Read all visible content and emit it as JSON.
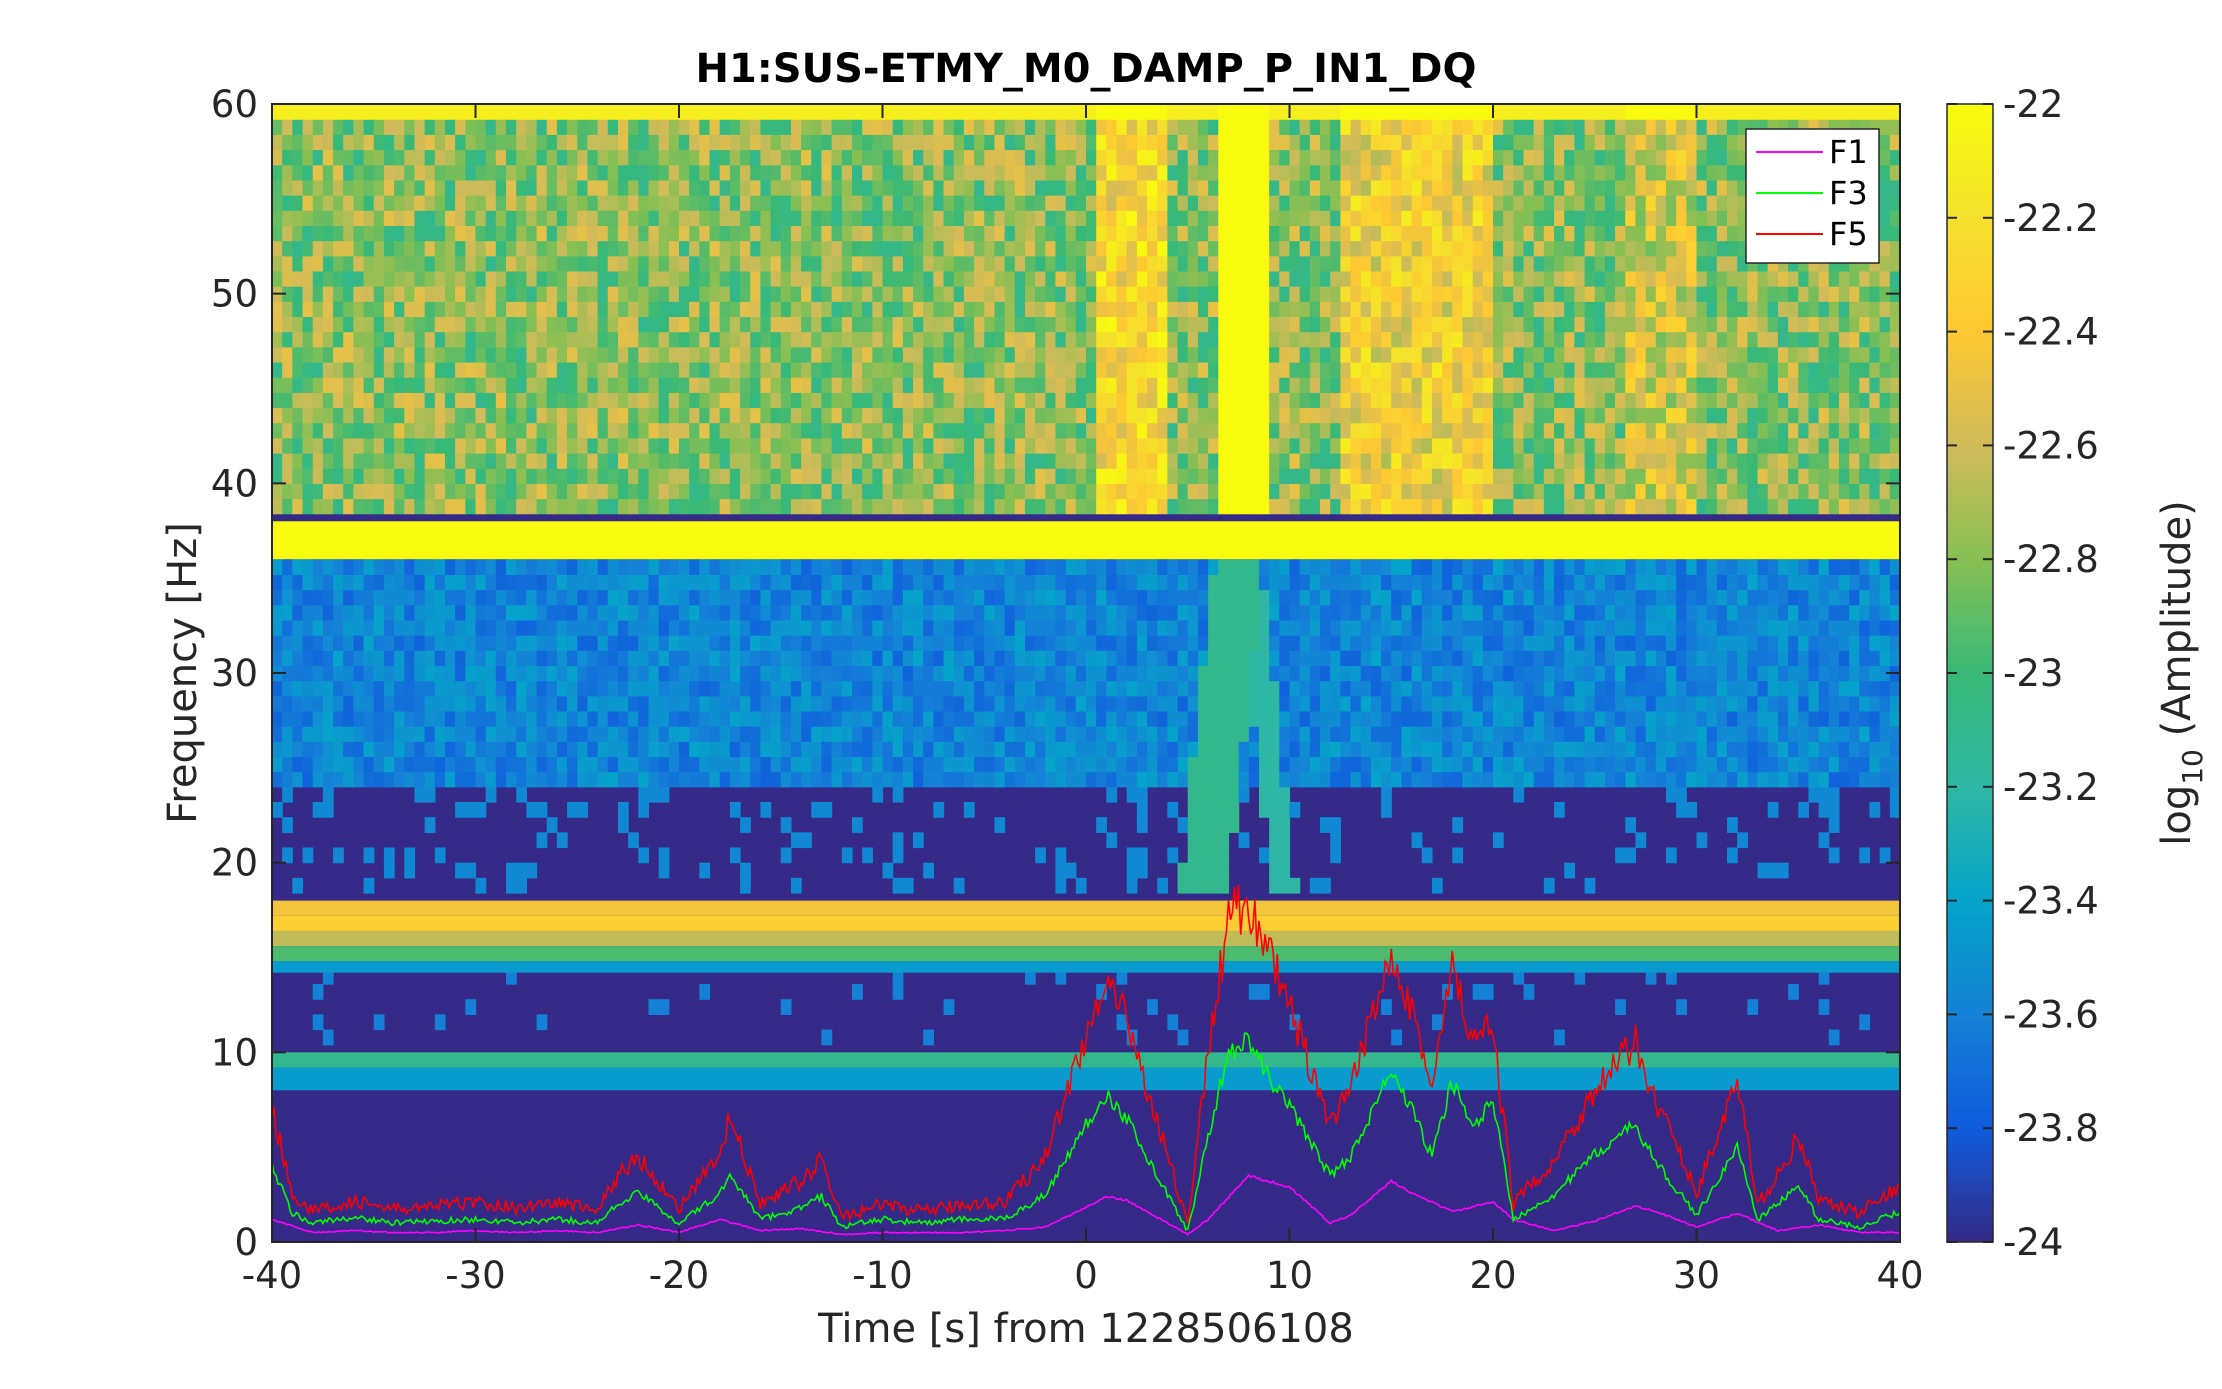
{
  "chart_data": {
    "type": "heatmap",
    "title": "H1:SUS-ETMY_M0_DAMP_P_IN1_DQ",
    "xlabel": "Time [s] from 1228506108",
    "ylabel": "Frequency [Hz]",
    "colorbar_label": "log10 (Amplitude)",
    "colorbar_label_base": "log",
    "colorbar_label_sub": "10",
    "colorbar_label_rest": " (Amplitude)",
    "xlim": [
      -40,
      40
    ],
    "ylim": [
      0,
      60
    ],
    "clim": [
      -24,
      -22
    ],
    "colormap": "parula",
    "xticks": [
      -40,
      -30,
      -20,
      -10,
      0,
      10,
      20,
      30,
      40
    ],
    "xtick_labels": [
      "-40",
      "-30",
      "-20",
      "-10",
      "0",
      "10",
      "20",
      "30",
      "40"
    ],
    "yticks": [
      0,
      10,
      20,
      30,
      40,
      50,
      60
    ],
    "ytick_labels": [
      "0",
      "10",
      "20",
      "30",
      "40",
      "50",
      "60"
    ],
    "cticks": [
      -22,
      -22.2,
      -22.4,
      -22.6,
      -22.8,
      -23,
      -23.2,
      -23.4,
      -23.6,
      -23.8,
      -24
    ],
    "ctick_labels": [
      "-22",
      "-22.2",
      "-22.4",
      "-22.6",
      "-22.8",
      "-23",
      "-23.2",
      "-23.4",
      "-23.6",
      "-23.8",
      "-24"
    ],
    "bands": [
      {
        "f_low": 36,
        "f_high": 38,
        "value": -22.0
      },
      {
        "f_low": 17.2,
        "f_high": 18,
        "value": -22.45
      },
      {
        "f_low": 16.4,
        "f_high": 17.2,
        "value": -22.35
      },
      {
        "f_low": 15.6,
        "f_high": 16.4,
        "value": -22.65
      },
      {
        "f_low": 14.8,
        "f_high": 15.6,
        "value": -22.95
      },
      {
        "f_low": 14.2,
        "f_high": 14.8,
        "value": -23.45
      },
      {
        "f_low": 9.2,
        "f_high": 10,
        "value": -23.1
      },
      {
        "f_low": 8,
        "f_high": 9.2,
        "value": -23.45
      }
    ],
    "legend": {
      "position": "top-right",
      "entries": [
        "F1",
        "F3",
        "F5"
      ]
    },
    "series": [
      {
        "name": "F1",
        "color": "#ff00ff",
        "x": [
          -40,
          -38,
          -36,
          -34,
          -32,
          -30,
          -28,
          -26,
          -24,
          -22,
          -20,
          -18,
          -16,
          -14,
          -12,
          -10,
          -8,
          -6,
          -4,
          -2,
          0,
          1,
          2,
          4,
          5,
          6,
          8,
          10,
          12,
          13,
          15,
          16,
          18,
          20,
          21,
          23,
          25,
          27,
          28,
          30,
          32,
          34,
          36,
          38,
          40
        ],
        "y": [
          1.2,
          0.5,
          0.6,
          0.5,
          0.5,
          0.6,
          0.5,
          0.6,
          0.5,
          0.9,
          0.5,
          1.2,
          0.6,
          0.7,
          0.4,
          0.5,
          0.5,
          0.5,
          0.6,
          0.8,
          1.8,
          2.4,
          2.2,
          1.0,
          0.4,
          1.2,
          3.5,
          2.9,
          1.0,
          1.4,
          3.2,
          2.6,
          1.6,
          2.1,
          1.2,
          0.6,
          1.1,
          1.9,
          1.6,
          0.8,
          1.5,
          0.6,
          0.9,
          0.5,
          0.5
        ]
      },
      {
        "name": "F3",
        "color": "#00ff00",
        "x": [
          -40,
          -39,
          -38,
          -36,
          -34,
          -32,
          -30,
          -28,
          -26,
          -24,
          -23,
          -22,
          -20,
          -18,
          -17.5,
          -16,
          -14,
          -13,
          -12,
          -10,
          -8,
          -6,
          -4,
          -2,
          0,
          1,
          2,
          4,
          5,
          6,
          7,
          8,
          9,
          10,
          12,
          13,
          15,
          16,
          17,
          18,
          19,
          20,
          21,
          23,
          25,
          27,
          28,
          30,
          32,
          33,
          34,
          35,
          36,
          38,
          40
        ],
        "y": [
          4.0,
          1.5,
          1.0,
          1.3,
          1.0,
          1.1,
          1.2,
          1.0,
          1.2,
          1.0,
          2.0,
          2.6,
          1.0,
          2.5,
          3.6,
          1.2,
          1.8,
          2.4,
          0.8,
          1.2,
          1.0,
          1.2,
          1.2,
          2.5,
          6.2,
          7.8,
          6.5,
          2.5,
          0.6,
          5.5,
          10.0,
          10.6,
          8.6,
          7.2,
          3.5,
          4.5,
          9.0,
          7.0,
          4.5,
          8.5,
          6.0,
          7.5,
          1.2,
          2.5,
          4.6,
          6.2,
          4.2,
          1.4,
          5.0,
          1.2,
          2.0,
          3.0,
          1.2,
          0.8,
          1.6
        ]
      },
      {
        "name": "F5",
        "color": "#ff0000",
        "x": [
          -40,
          -39,
          -38,
          -36,
          -34,
          -32,
          -30,
          -28,
          -26,
          -24,
          -23,
          -22,
          -20,
          -18,
          -17.5,
          -16,
          -14,
          -13,
          -12,
          -10,
          -8,
          -6,
          -4,
          -2,
          0,
          1,
          2,
          4,
          5,
          6,
          7,
          8,
          9,
          10,
          12,
          13,
          15,
          16,
          17,
          18,
          19,
          20,
          21,
          23,
          25,
          27,
          28,
          30,
          32,
          33,
          34,
          35,
          36,
          38,
          40
        ],
        "y": [
          7.0,
          2.6,
          1.6,
          2.2,
          1.7,
          1.9,
          2.1,
          1.8,
          2.1,
          1.7,
          3.5,
          4.5,
          1.8,
          4.5,
          6.6,
          2.0,
          3.2,
          4.3,
          1.3,
          2.0,
          1.6,
          2.0,
          2.1,
          4.5,
          11.0,
          13.2,
          11.8,
          4.6,
          1.0,
          10.0,
          17.0,
          18.0,
          15.0,
          12.5,
          6.0,
          8.0,
          15.5,
          12.5,
          8.0,
          14.5,
          10.5,
          11.2,
          2.0,
          4.3,
          8.0,
          10.5,
          7.5,
          2.6,
          8.5,
          2.0,
          3.5,
          5.5,
          2.2,
          1.5,
          3.0
        ]
      }
    ]
  }
}
